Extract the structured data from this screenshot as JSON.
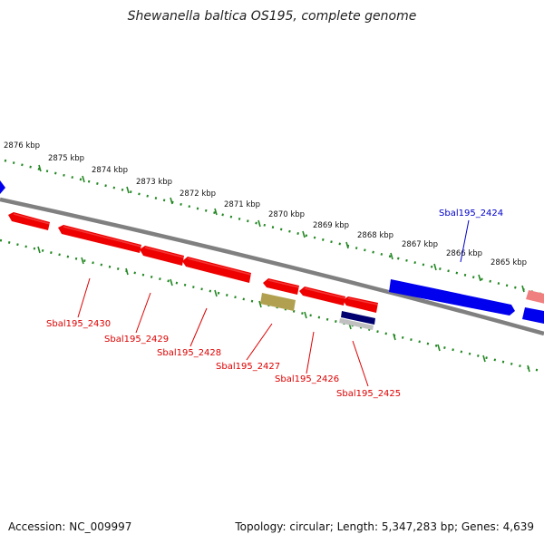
{
  "title": "Shewanella baltica OS195, complete genome",
  "footer": {
    "accession": "Accession: NC_009997",
    "topology": "Topology: circular; Length: 5,347,283 bp; Genes: 4,639"
  },
  "ruler": {
    "ticks": [
      "2876 kbp",
      "2875 kbp",
      "2874 kbp",
      "2873 kbp",
      "2872 kbp",
      "2871 kbp",
      "2870 kbp",
      "2869 kbp",
      "2868 kbp",
      "2867 kbp",
      "2866 kbp",
      "2865 kbp"
    ]
  },
  "genes": [
    {
      "label": "Sbal195_2430",
      "color": "#dd0000"
    },
    {
      "label": "Sbal195_2429",
      "color": "#dd0000"
    },
    {
      "label": "Sbal195_2428",
      "color": "#dd0000"
    },
    {
      "label": "Sbal195_2427",
      "color": "#dd0000"
    },
    {
      "label": "Sbal195_2426",
      "color": "#dd0000"
    },
    {
      "label": "Sbal195_2425",
      "color": "#dd0000"
    },
    {
      "label": "Sbal195_2424",
      "color": "#0000cc"
    }
  ],
  "colors": {
    "backbone": "#808080",
    "ticks": "#228822",
    "reverse_gene": "#ee0000",
    "forward_gene": "#0000ee",
    "pseudo_gene": "#b0a050",
    "rna_gene": "#000070"
  }
}
